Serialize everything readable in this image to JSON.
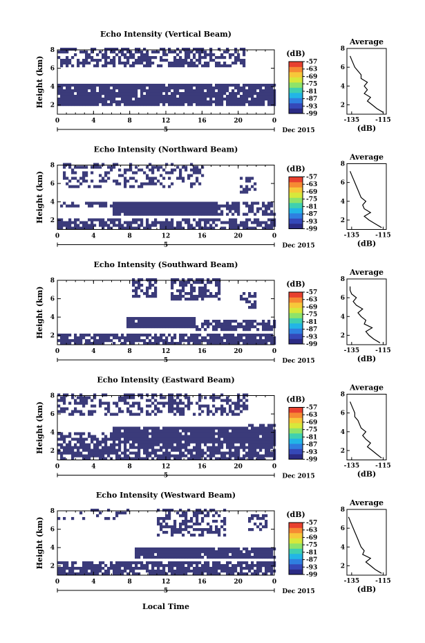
{
  "figure": {
    "xlabel": "Local Time",
    "date_label": "Dec 2015",
    "colorbar_unit": "(dB)",
    "avg_xlabel": "(dB)",
    "avg_title": "Average"
  },
  "colors": {
    "echo": "#3b3b7a",
    "background": "#ffffff",
    "axis": "#000000",
    "colorbar": [
      "#2b2b84",
      "#3548b8",
      "#2f7fe0",
      "#22b5e6",
      "#3fd0b0",
      "#8ee36a",
      "#d7e83b",
      "#f7c83a",
      "#f68a33",
      "#e8402f"
    ]
  },
  "chart_data": [
    {
      "type": "heatmap",
      "title": "Echo Intensity (Vertical Beam)",
      "ylabel": "Height (km)",
      "x_ticks": [
        "0",
        "4",
        "8",
        "12",
        "16",
        "20",
        "0"
      ],
      "x_day_tick": "5",
      "y_ticks": [
        "2",
        "4",
        "6",
        "8"
      ],
      "xlim": [
        0,
        24
      ],
      "ylim": [
        1,
        8
      ],
      "colorbar_ticks": [
        "-57",
        "-63",
        "-69",
        "-75",
        "-81",
        "-87",
        "-93",
        "-99"
      ],
      "colorbar_range": [
        -99,
        -57
      ],
      "echo_regions": [
        {
          "t0": 0,
          "t1": 20.5,
          "h0": 6.0,
          "h1": 8.0,
          "density": 0.55
        },
        {
          "t0": 0,
          "t1": 24,
          "h0": 3.4,
          "h1": 4.3,
          "density": 0.9
        },
        {
          "t0": 0,
          "t1": 24,
          "h0": 1.9,
          "h1": 3.4,
          "density": 0.9
        }
      ],
      "average": {
        "x_ticks": [
          "-135",
          "-115"
        ],
        "y_ticks": [
          "2",
          "4",
          "6",
          "8"
        ],
        "xlim": [
          -138,
          -113
        ],
        "ylim": [
          1,
          8
        ],
        "heights": [
          1.2,
          1.6,
          2.0,
          2.4,
          2.8,
          3.2,
          3.6,
          4.0,
          4.4,
          4.8,
          5.2,
          5.6,
          6.0,
          6.4,
          6.8,
          7.2
        ],
        "values": [
          -115,
          -119,
          -122,
          -125,
          -123,
          -127,
          -125,
          -127,
          -125,
          -129,
          -129,
          -131,
          -133,
          -134,
          -135,
          -136
        ]
      }
    },
    {
      "type": "heatmap",
      "title": "Echo Intensity (Northward Beam)",
      "ylabel": "Height (km)",
      "x_ticks": [
        "0",
        "4",
        "8",
        "12",
        "16",
        "20",
        "0"
      ],
      "x_day_tick": "5",
      "y_ticks": [
        "2",
        "4",
        "6",
        "8"
      ],
      "xlim": [
        0,
        24
      ],
      "ylim": [
        1,
        8
      ],
      "colorbar_ticks": [
        "-57",
        "-63",
        "-69",
        "-75",
        "-81",
        "-87",
        "-93",
        "-99"
      ],
      "colorbar_range": [
        -99,
        -57
      ],
      "echo_regions": [
        {
          "t0": 0.5,
          "t1": 16,
          "h0": 5.5,
          "h1": 8.0,
          "density": 0.35
        },
        {
          "t0": 20,
          "t1": 22,
          "h0": 4.8,
          "h1": 6.5,
          "density": 0.5
        },
        {
          "t0": 0,
          "t1": 6,
          "h0": 3.2,
          "h1": 4.0,
          "density": 0.6
        },
        {
          "t0": 6,
          "t1": 17.5,
          "h0": 2.3,
          "h1": 4.0,
          "density": 0.98
        },
        {
          "t0": 17.5,
          "t1": 24,
          "h0": 2.4,
          "h1": 3.9,
          "density": 0.7
        },
        {
          "t0": 0,
          "t1": 24,
          "h0": 1.0,
          "h1": 2.0,
          "density": 0.7
        }
      ],
      "average": {
        "x_ticks": [
          "-135",
          "-115"
        ],
        "y_ticks": [
          "2",
          "4",
          "6",
          "8"
        ],
        "xlim": [
          -138,
          -113
        ],
        "ylim": [
          1,
          8
        ],
        "heights": [
          1.2,
          1.6,
          2.0,
          2.4,
          2.8,
          3.2,
          3.6,
          4.0,
          4.4,
          4.8,
          5.2,
          5.6,
          6.0,
          6.4,
          6.8,
          7.2
        ],
        "values": [
          -116,
          -120,
          -124,
          -127,
          -123,
          -127,
          -128,
          -126,
          -129,
          -130,
          -131,
          -132,
          -133,
          -134,
          -135,
          -136
        ]
      }
    },
    {
      "type": "heatmap",
      "title": "Echo Intensity (Southward Beam)",
      "ylabel": "Height (km)",
      "x_ticks": [
        "0",
        "4",
        "8",
        "12",
        "16",
        "20",
        "0"
      ],
      "x_day_tick": "5",
      "y_ticks": [
        "2",
        "4",
        "6",
        "8"
      ],
      "xlim": [
        0,
        24
      ],
      "ylim": [
        1,
        8
      ],
      "colorbar_ticks": [
        "-57",
        "-63",
        "-69",
        "-75",
        "-81",
        "-87",
        "-93",
        "-99"
      ],
      "colorbar_range": [
        -99,
        -57
      ],
      "echo_regions": [
        {
          "t0": 8,
          "t1": 11,
          "h0": 6.0,
          "h1": 8.0,
          "density": 0.7
        },
        {
          "t0": 12.5,
          "t1": 18,
          "h0": 5.6,
          "h1": 8.0,
          "density": 0.6
        },
        {
          "t0": 20,
          "t1": 22,
          "h0": 4.8,
          "h1": 6.6,
          "density": 0.5
        },
        {
          "t0": 7.5,
          "t1": 15,
          "h0": 2.6,
          "h1": 3.9,
          "density": 0.98
        },
        {
          "t0": 15,
          "t1": 24,
          "h0": 2.4,
          "h1": 3.7,
          "density": 0.75
        },
        {
          "t0": 0,
          "t1": 24,
          "h0": 1.0,
          "h1": 2.2,
          "density": 0.8
        }
      ],
      "average": {
        "x_ticks": [
          "-135",
          "-115"
        ],
        "y_ticks": [
          "2",
          "4",
          "6",
          "8"
        ],
        "xlim": [
          -138,
          -113
        ],
        "ylim": [
          1,
          8
        ],
        "heights": [
          1.2,
          1.6,
          2.0,
          2.4,
          2.8,
          3.2,
          3.6,
          4.0,
          4.4,
          4.8,
          5.2,
          5.6,
          6.0,
          6.4,
          6.8,
          7.2
        ],
        "values": [
          -117,
          -121,
          -124,
          -126,
          -122,
          -127,
          -126,
          -129,
          -131,
          -128,
          -132,
          -134,
          -132,
          -135,
          -136,
          -136
        ]
      }
    },
    {
      "type": "heatmap",
      "title": "Echo Intensity (Eastward Beam)",
      "ylabel": "Height (km)",
      "x_ticks": [
        "0",
        "4",
        "8",
        "12",
        "16",
        "20",
        "0"
      ],
      "x_day_tick": "5",
      "y_ticks": [
        "2",
        "4",
        "6",
        "8"
      ],
      "xlim": [
        0,
        24
      ],
      "ylim": [
        1,
        8
      ],
      "colorbar_ticks": [
        "-57",
        "-63",
        "-69",
        "-75",
        "-81",
        "-87",
        "-93",
        "-99"
      ],
      "colorbar_range": [
        -99,
        -57
      ],
      "echo_regions": [
        {
          "t0": 0,
          "t1": 21,
          "h0": 5.6,
          "h1": 8.0,
          "density": 0.45
        },
        {
          "t0": 21,
          "t1": 24,
          "h0": 3.6,
          "h1": 4.8,
          "density": 0.6
        },
        {
          "t0": 0,
          "t1": 6,
          "h0": 2.6,
          "h1": 4.0,
          "density": 0.5
        },
        {
          "t0": 6,
          "t1": 24,
          "h0": 2.6,
          "h1": 4.4,
          "density": 0.95
        },
        {
          "t0": 0,
          "t1": 24,
          "h0": 1.0,
          "h1": 2.6,
          "density": 0.75
        }
      ],
      "average": {
        "x_ticks": [
          "-135",
          "-115"
        ],
        "y_ticks": [
          "2",
          "4",
          "6",
          "8"
        ],
        "xlim": [
          -138,
          -113
        ],
        "ylim": [
          1,
          8
        ],
        "heights": [
          1.2,
          1.6,
          2.0,
          2.4,
          2.8,
          3.2,
          3.6,
          4.0,
          4.4,
          4.8,
          5.2,
          5.6,
          6.0,
          6.4,
          6.8,
          7.2
        ],
        "values": [
          -116,
          -119,
          -122,
          -125,
          -123,
          -126,
          -128,
          -126,
          -129,
          -130,
          -131,
          -133,
          -133,
          -134,
          -135,
          -136
        ]
      }
    },
    {
      "type": "heatmap",
      "title": "Echo Intensity (Westward Beam)",
      "ylabel": "Height (km)",
      "x_ticks": [
        "0",
        "4",
        "8",
        "12",
        "16",
        "20",
        "0"
      ],
      "x_day_tick": "5",
      "y_ticks": [
        "2",
        "4",
        "6",
        "8"
      ],
      "xlim": [
        0,
        24
      ],
      "ylim": [
        1,
        8
      ],
      "colorbar_ticks": [
        "-57",
        "-63",
        "-69",
        "-75",
        "-81",
        "-87",
        "-93",
        "-99"
      ],
      "colorbar_range": [
        -99,
        -57
      ],
      "echo_regions": [
        {
          "t0": 0,
          "t1": 8,
          "h0": 7.0,
          "h1": 8.0,
          "density": 0.15
        },
        {
          "t0": 11,
          "t1": 18.5,
          "h0": 5.2,
          "h1": 8.0,
          "density": 0.55
        },
        {
          "t0": 21,
          "t1": 23,
          "h0": 5.8,
          "h1": 7.6,
          "density": 0.5
        },
        {
          "t0": 8.5,
          "t1": 24,
          "h0": 2.6,
          "h1": 3.8,
          "density": 0.95
        },
        {
          "t0": 0,
          "t1": 24,
          "h0": 1.0,
          "h1": 2.4,
          "density": 0.8
        }
      ],
      "average": {
        "x_ticks": [
          "-135",
          "-115"
        ],
        "y_ticks": [
          "2",
          "4",
          "6",
          "8"
        ],
        "xlim": [
          -138,
          -113
        ],
        "ylim": [
          1,
          8
        ],
        "heights": [
          1.2,
          1.6,
          2.0,
          2.4,
          2.8,
          3.2,
          3.6,
          4.0,
          4.4,
          4.8,
          5.2,
          5.6,
          6.0,
          6.4,
          6.8,
          7.2
        ],
        "values": [
          -116,
          -120,
          -123,
          -126,
          -123,
          -128,
          -127,
          -129,
          -130,
          -131,
          -132,
          -133,
          -134,
          -135,
          -136,
          -137
        ]
      }
    }
  ]
}
